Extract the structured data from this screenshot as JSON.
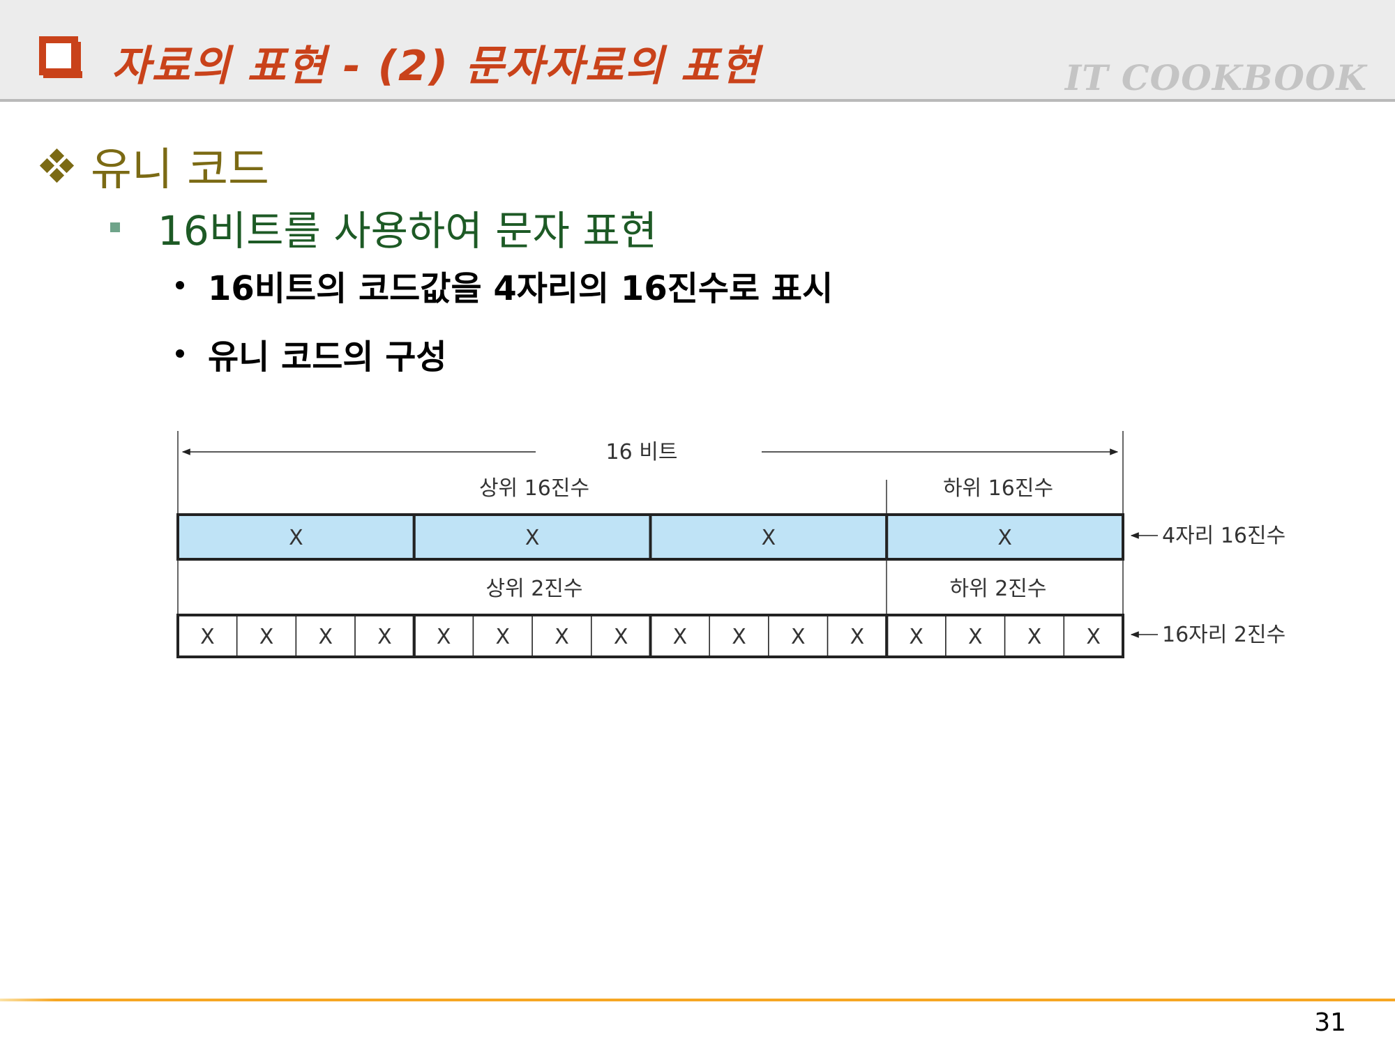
{
  "header": {
    "title": "자료의 표현  - (2) 문자자료의 표현",
    "brand": "IT COOKBOOK"
  },
  "content": {
    "heading": "유니 코드",
    "subheading": "16비트를 사용하여 문자 표현",
    "bullets": [
      "16비트의 코드값을 4자리의 16진수로 표시",
      "유니 코드의 구성"
    ]
  },
  "diagram": {
    "total_label": "16 비트",
    "upper_hex_label": "상위 16진수",
    "lower_hex_label": "하위 16진수",
    "hex_digits": [
      "X",
      "X",
      "X",
      "X"
    ],
    "hex_row_label": "4자리 16진수",
    "upper_bin_label": "상위 2진수",
    "lower_bin_label": "하위 2진수",
    "bin_digits": [
      "X",
      "X",
      "X",
      "X",
      "X",
      "X",
      "X",
      "X",
      "X",
      "X",
      "X",
      "X",
      "X",
      "X",
      "X",
      "X"
    ],
    "bin_row_label": "16자리 2진수",
    "hex_fill": "#bfe3f6"
  },
  "footer": {
    "page_number": "31"
  }
}
